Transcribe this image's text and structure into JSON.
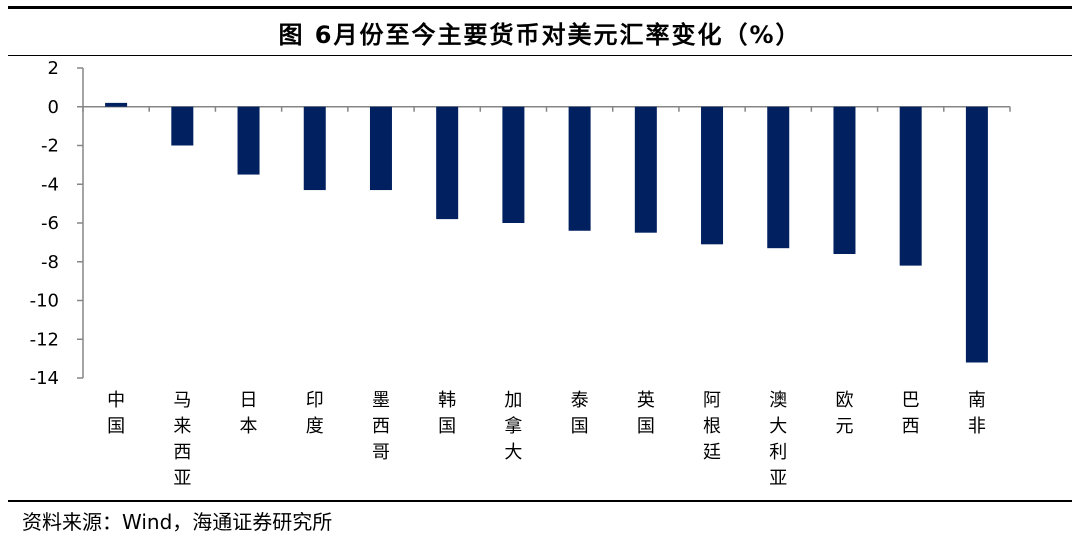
{
  "title": "图 6月份至今主要货币对美元汇率变化（%）",
  "source": "资料来源：Wind，海通证券研究所",
  "chart_data": {
    "type": "bar",
    "categories": [
      "中国",
      "马来西亚",
      "日本",
      "印度",
      "墨西哥",
      "韩国",
      "加拿大",
      "泰国",
      "英国",
      "阿根廷",
      "澳大利亚",
      "欧元",
      "巴西",
      "南非"
    ],
    "values": [
      0.2,
      -2.0,
      -3.5,
      -4.3,
      -4.3,
      -5.8,
      -6.0,
      -6.4,
      -6.5,
      -7.1,
      -7.3,
      -7.6,
      -8.2,
      -13.2
    ],
    "ylim": [
      -14,
      2
    ],
    "yticks": [
      2,
      0,
      -2,
      -4,
      -6,
      -8,
      -10,
      -12,
      -14
    ],
    "grid": false,
    "bar_color": "#002060"
  }
}
